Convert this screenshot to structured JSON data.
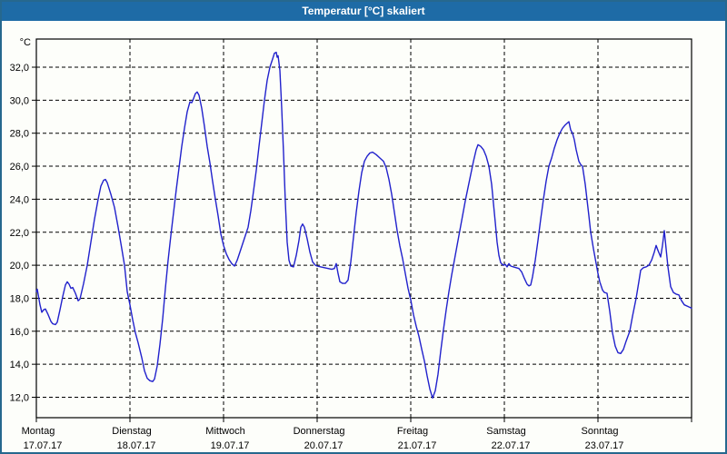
{
  "window": {
    "title": "Temperatur [°C] skaliert"
  },
  "colors": {
    "titlebar_bg": "#1e6ba6",
    "window_border": "#26688e",
    "title_text": "#ffffff",
    "chart_bg": "#fdfefa",
    "line": "#2121cc",
    "grid": "#000000",
    "axis": "#000000",
    "label_text": "#000000"
  },
  "chart_data": {
    "type": "line",
    "title": "Temperatur [°C] skaliert",
    "ylabel": "°C",
    "xlabel": "",
    "grid": "dashed both axes",
    "legend_position": "none",
    "ylim": [
      10.8,
      33.7
    ],
    "xlim_days": [
      0,
      7
    ],
    "y_ticks": [
      {
        "value": 12,
        "label": "12,0"
      },
      {
        "value": 14,
        "label": "14,0"
      },
      {
        "value": 16,
        "label": "16,0"
      },
      {
        "value": 18,
        "label": "18,0"
      },
      {
        "value": 20,
        "label": "20,0"
      },
      {
        "value": 22,
        "label": "22,0"
      },
      {
        "value": 24,
        "label": "24,0"
      },
      {
        "value": 26,
        "label": "26,0"
      },
      {
        "value": 28,
        "label": "28,0"
      },
      {
        "value": 30,
        "label": "30,0"
      },
      {
        "value": 32,
        "label": "32,0"
      }
    ],
    "x_days": [
      {
        "name": "Montag",
        "date": "17.07.17"
      },
      {
        "name": "Dienstag",
        "date": "18.07.17"
      },
      {
        "name": "Mittwoch",
        "date": "19.07.17"
      },
      {
        "name": "Donnerstag",
        "date": "20.07.17"
      },
      {
        "name": "Freitag",
        "date": "21.07.17"
      },
      {
        "name": "Samstag",
        "date": "22.07.17"
      },
      {
        "name": "Sonntag",
        "date": "23.07.17"
      }
    ],
    "series": [
      {
        "name": "Temperatur [°C]",
        "color": "#2121cc",
        "points_format": "[days_since_monday_00h, temp_celsius]",
        "points": [
          [
            0.0,
            18.4
          ],
          [
            0.01,
            18.55
          ],
          [
            0.039,
            17.6
          ],
          [
            0.058,
            17.15
          ],
          [
            0.078,
            17.3
          ],
          [
            0.097,
            17.35
          ],
          [
            0.126,
            17.0
          ],
          [
            0.155,
            16.6
          ],
          [
            0.175,
            16.45
          ],
          [
            0.204,
            16.4
          ],
          [
            0.223,
            16.55
          ],
          [
            0.252,
            17.3
          ],
          [
            0.282,
            18.1
          ],
          [
            0.311,
            18.8
          ],
          [
            0.33,
            19.0
          ],
          [
            0.35,
            18.85
          ],
          [
            0.369,
            18.6
          ],
          [
            0.388,
            18.65
          ],
          [
            0.417,
            18.3
          ],
          [
            0.447,
            17.85
          ],
          [
            0.466,
            17.95
          ],
          [
            0.505,
            18.9
          ],
          [
            0.544,
            20.0
          ],
          [
            0.583,
            21.4
          ],
          [
            0.621,
            22.8
          ],
          [
            0.66,
            24.0
          ],
          [
            0.689,
            24.8
          ],
          [
            0.718,
            25.15
          ],
          [
            0.738,
            25.2
          ],
          [
            0.757,
            25.0
          ],
          [
            0.796,
            24.3
          ],
          [
            0.835,
            23.5
          ],
          [
            0.874,
            22.3
          ],
          [
            0.913,
            21.0
          ],
          [
            0.942,
            20.0
          ],
          [
            0.971,
            18.4
          ],
          [
            1.0,
            17.6
          ],
          [
            1.029,
            16.7
          ],
          [
            1.058,
            15.9
          ],
          [
            1.087,
            15.3
          ],
          [
            1.126,
            14.4
          ],
          [
            1.155,
            13.6
          ],
          [
            1.184,
            13.15
          ],
          [
            1.214,
            13.0
          ],
          [
            1.243,
            12.95
          ],
          [
            1.262,
            13.1
          ],
          [
            1.291,
            13.9
          ],
          [
            1.32,
            15.2
          ],
          [
            1.35,
            16.8
          ],
          [
            1.379,
            18.6
          ],
          [
            1.408,
            20.3
          ],
          [
            1.437,
            21.8
          ],
          [
            1.466,
            23.2
          ],
          [
            1.495,
            24.6
          ],
          [
            1.524,
            25.9
          ],
          [
            1.553,
            27.2
          ],
          [
            1.583,
            28.3
          ],
          [
            1.612,
            29.3
          ],
          [
            1.641,
            29.9
          ],
          [
            1.66,
            29.85
          ],
          [
            1.68,
            30.1
          ],
          [
            1.699,
            30.4
          ],
          [
            1.718,
            30.5
          ],
          [
            1.738,
            30.3
          ],
          [
            1.767,
            29.5
          ],
          [
            1.796,
            28.4
          ],
          [
            1.825,
            27.2
          ],
          [
            1.854,
            26.2
          ],
          [
            1.883,
            25.1
          ],
          [
            1.913,
            24.0
          ],
          [
            1.942,
            23.0
          ],
          [
            1.971,
            21.9
          ],
          [
            2.0,
            21.2
          ],
          [
            2.029,
            20.7
          ],
          [
            2.058,
            20.35
          ],
          [
            2.087,
            20.1
          ],
          [
            2.117,
            19.95
          ],
          [
            2.146,
            20.3
          ],
          [
            2.175,
            20.8
          ],
          [
            2.204,
            21.3
          ],
          [
            2.233,
            21.8
          ],
          [
            2.262,
            22.3
          ],
          [
            2.291,
            23.3
          ],
          [
            2.32,
            24.5
          ],
          [
            2.35,
            25.8
          ],
          [
            2.379,
            27.2
          ],
          [
            2.408,
            28.6
          ],
          [
            2.437,
            30.0
          ],
          [
            2.466,
            31.2
          ],
          [
            2.495,
            32.0
          ],
          [
            2.524,
            32.5
          ],
          [
            2.544,
            32.85
          ],
          [
            2.563,
            32.9
          ],
          [
            2.573,
            32.6
          ],
          [
            2.583,
            32.7
          ],
          [
            2.602,
            31.8
          ],
          [
            2.621,
            29.5
          ],
          [
            2.641,
            26.8
          ],
          [
            2.66,
            23.8
          ],
          [
            2.68,
            21.4
          ],
          [
            2.699,
            20.3
          ],
          [
            2.718,
            19.95
          ],
          [
            2.748,
            19.9
          ],
          [
            2.777,
            20.6
          ],
          [
            2.806,
            21.5
          ],
          [
            2.825,
            22.3
          ],
          [
            2.845,
            22.5
          ],
          [
            2.864,
            22.3
          ],
          [
            2.893,
            21.6
          ],
          [
            2.922,
            20.8
          ],
          [
            2.951,
            20.2
          ],
          [
            2.981,
            20.0
          ],
          [
            3.0,
            19.95
          ],
          [
            3.039,
            19.9
          ],
          [
            3.078,
            19.85
          ],
          [
            3.117,
            19.8
          ],
          [
            3.155,
            19.75
          ],
          [
            3.184,
            19.8
          ],
          [
            3.204,
            20.1
          ],
          [
            3.223,
            19.5
          ],
          [
            3.243,
            19.0
          ],
          [
            3.272,
            18.9
          ],
          [
            3.301,
            18.9
          ],
          [
            3.33,
            19.1
          ],
          [
            3.359,
            20.2
          ],
          [
            3.388,
            21.7
          ],
          [
            3.417,
            23.2
          ],
          [
            3.447,
            24.5
          ],
          [
            3.476,
            25.6
          ],
          [
            3.505,
            26.3
          ],
          [
            3.534,
            26.6
          ],
          [
            3.563,
            26.8
          ],
          [
            3.592,
            26.85
          ],
          [
            3.631,
            26.7
          ],
          [
            3.67,
            26.5
          ],
          [
            3.709,
            26.3
          ],
          [
            3.738,
            25.9
          ],
          [
            3.767,
            25.2
          ],
          [
            3.796,
            24.3
          ],
          [
            3.825,
            23.2
          ],
          [
            3.854,
            22.1
          ],
          [
            3.883,
            21.2
          ],
          [
            3.913,
            20.4
          ],
          [
            3.942,
            19.5
          ],
          [
            3.971,
            18.6
          ],
          [
            4.0,
            17.9
          ],
          [
            4.029,
            17.0
          ],
          [
            4.058,
            16.3
          ],
          [
            4.087,
            15.7
          ],
          [
            4.117,
            14.9
          ],
          [
            4.146,
            14.2
          ],
          [
            4.175,
            13.3
          ],
          [
            4.204,
            12.5
          ],
          [
            4.233,
            11.95
          ],
          [
            4.262,
            12.4
          ],
          [
            4.291,
            13.4
          ],
          [
            4.32,
            14.8
          ],
          [
            4.35,
            16.1
          ],
          [
            4.379,
            17.3
          ],
          [
            4.408,
            18.4
          ],
          [
            4.437,
            19.4
          ],
          [
            4.466,
            20.3
          ],
          [
            4.495,
            21.2
          ],
          [
            4.524,
            22.1
          ],
          [
            4.553,
            23.0
          ],
          [
            4.583,
            23.9
          ],
          [
            4.612,
            24.7
          ],
          [
            4.641,
            25.5
          ],
          [
            4.67,
            26.3
          ],
          [
            4.699,
            27.0
          ],
          [
            4.718,
            27.3
          ],
          [
            4.748,
            27.2
          ],
          [
            4.777,
            27.0
          ],
          [
            4.806,
            26.6
          ],
          [
            4.835,
            26.0
          ],
          [
            4.864,
            24.9
          ],
          [
            4.883,
            23.8
          ],
          [
            4.903,
            22.6
          ],
          [
            4.922,
            21.4
          ],
          [
            4.942,
            20.6
          ],
          [
            4.961,
            20.15
          ],
          [
            4.99,
            20.0
          ],
          [
            5.01,
            20.05
          ],
          [
            5.029,
            19.9
          ],
          [
            5.049,
            20.1
          ],
          [
            5.068,
            19.95
          ],
          [
            5.097,
            19.9
          ],
          [
            5.126,
            19.85
          ],
          [
            5.155,
            19.8
          ],
          [
            5.184,
            19.6
          ],
          [
            5.214,
            19.2
          ],
          [
            5.243,
            18.85
          ],
          [
            5.262,
            18.75
          ],
          [
            5.282,
            18.8
          ],
          [
            5.301,
            19.3
          ],
          [
            5.33,
            20.3
          ],
          [
            5.359,
            21.5
          ],
          [
            5.388,
            22.8
          ],
          [
            5.417,
            24.0
          ],
          [
            5.447,
            25.1
          ],
          [
            5.476,
            26.0
          ],
          [
            5.505,
            26.5
          ],
          [
            5.534,
            27.1
          ],
          [
            5.563,
            27.6
          ],
          [
            5.592,
            28.0
          ],
          [
            5.621,
            28.3
          ],
          [
            5.65,
            28.5
          ],
          [
            5.68,
            28.65
          ],
          [
            5.689,
            28.7
          ],
          [
            5.709,
            28.2
          ],
          [
            5.728,
            28.0
          ],
          [
            5.748,
            27.6
          ],
          [
            5.767,
            27.0
          ],
          [
            5.796,
            26.3
          ],
          [
            5.816,
            26.1
          ],
          [
            5.835,
            26.0
          ],
          [
            5.864,
            24.9
          ],
          [
            5.883,
            24.0
          ],
          [
            5.903,
            23.0
          ],
          [
            5.922,
            22.0
          ],
          [
            5.951,
            21.0
          ],
          [
            5.971,
            20.4
          ],
          [
            6.0,
            19.5
          ],
          [
            6.019,
            19.0
          ],
          [
            6.049,
            18.5
          ],
          [
            6.068,
            18.35
          ],
          [
            6.097,
            18.3
          ],
          [
            6.126,
            17.2
          ],
          [
            6.155,
            15.9
          ],
          [
            6.184,
            15.1
          ],
          [
            6.214,
            14.7
          ],
          [
            6.243,
            14.65
          ],
          [
            6.272,
            14.9
          ],
          [
            6.301,
            15.4
          ],
          [
            6.34,
            16.0
          ],
          [
            6.369,
            16.9
          ],
          [
            6.408,
            18.0
          ],
          [
            6.437,
            19.0
          ],
          [
            6.456,
            19.7
          ],
          [
            6.485,
            19.85
          ],
          [
            6.515,
            19.9
          ],
          [
            6.544,
            20.0
          ],
          [
            6.573,
            20.3
          ],
          [
            6.602,
            20.8
          ],
          [
            6.621,
            21.2
          ],
          [
            6.641,
            20.9
          ],
          [
            6.67,
            20.5
          ],
          [
            6.689,
            21.2
          ],
          [
            6.709,
            22.1
          ],
          [
            6.728,
            21.0
          ],
          [
            6.748,
            19.9
          ],
          [
            6.777,
            18.7
          ],
          [
            6.806,
            18.35
          ],
          [
            6.835,
            18.25
          ],
          [
            6.864,
            18.2
          ],
          [
            6.893,
            17.85
          ],
          [
            6.922,
            17.6
          ],
          [
            6.961,
            17.5
          ],
          [
            7.0,
            17.4
          ]
        ]
      }
    ]
  }
}
